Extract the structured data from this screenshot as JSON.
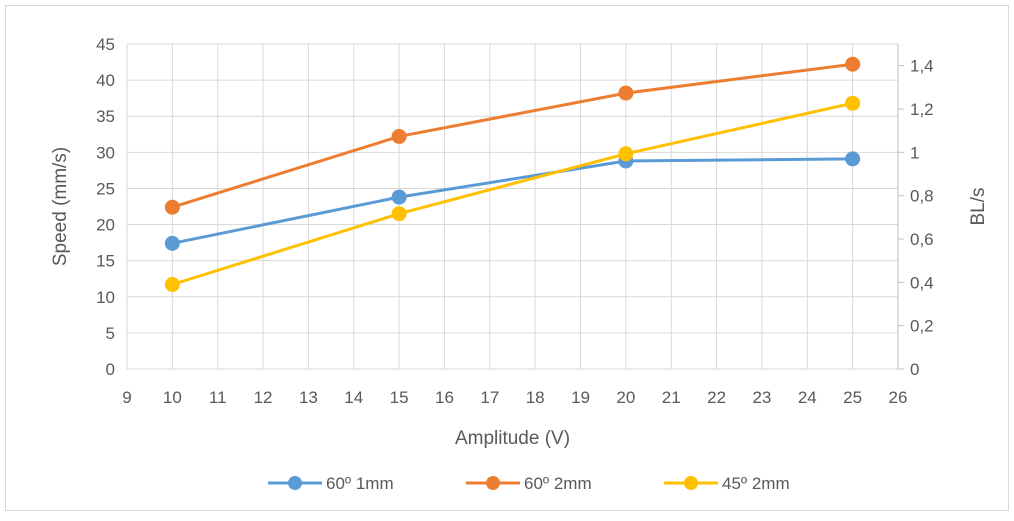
{
  "chart_data": {
    "type": "line",
    "title": "",
    "xlabel": "Amplitude (V)",
    "ylabel": "Speed (mm/s)",
    "y2label": "BL/s",
    "xlim": [
      9,
      26
    ],
    "ylim": [
      0,
      45
    ],
    "y2lim": [
      0,
      1.5
    ],
    "x_ticks": [
      "9",
      "10",
      "11",
      "12",
      "13",
      "14",
      "15",
      "16",
      "17",
      "18",
      "19",
      "20",
      "21",
      "22",
      "23",
      "24",
      "25",
      "26"
    ],
    "y_ticks": [
      "0",
      "5",
      "10",
      "15",
      "20",
      "25",
      "30",
      "35",
      "40",
      "45"
    ],
    "y2_ticks": [
      "0",
      "0,2",
      "0,4",
      "0,6",
      "0,8",
      "1",
      "1,2",
      "1,4"
    ],
    "grid": true,
    "legend_position": "bottom",
    "x": [
      10,
      15,
      20,
      25
    ],
    "series": [
      {
        "name": "60º 1mm",
        "values": [
          17.4,
          23.8,
          28.8,
          29.1
        ],
        "color": "#5B9BD5"
      },
      {
        "name": "60º 2mm",
        "values": [
          22.4,
          32.2,
          38.2,
          42.2
        ],
        "color": "#ED7D31"
      },
      {
        "name": "45º 2mm",
        "values": [
          11.7,
          21.5,
          29.8,
          36.8
        ],
        "color": "#FFC000"
      }
    ]
  }
}
